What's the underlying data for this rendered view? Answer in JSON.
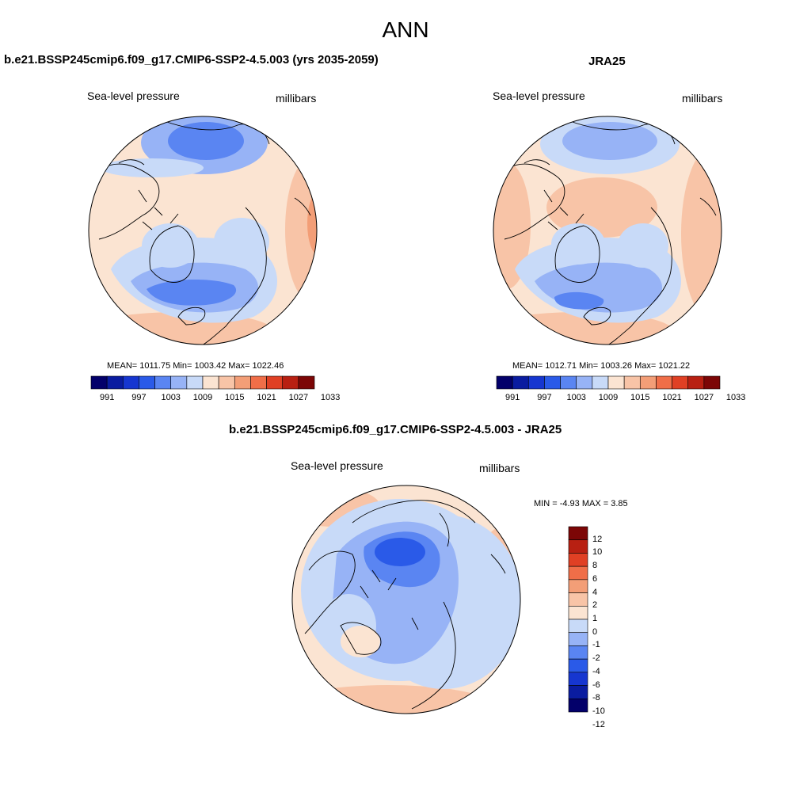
{
  "main_title": "ANN",
  "colors": {
    "abs_levels": [
      "#03006a",
      "#0a1ca0",
      "#1636d0",
      "#2a5ae8",
      "#5a85f2",
      "#97b3f6",
      "#c8daf8",
      "#fbe4d2",
      "#f8c4a7",
      "#f39e77",
      "#f06e48",
      "#e04024",
      "#b82012",
      "#7c0606"
    ],
    "diff_levels": [
      "#03006a",
      "#0a1ca0",
      "#1636d0",
      "#2a5ae8",
      "#5a85f2",
      "#97b3f6",
      "#c8daf8",
      "#fbe4d2",
      "#f8c4a7",
      "#f39e77",
      "#f06e48",
      "#e04024",
      "#b82012",
      "#7c0606"
    ],
    "ocean_outline": "#000000"
  },
  "panels": [
    {
      "id": "model",
      "title": "b.e21.BSSP245cmip6.f09_g17.CMIP6-SSP2-4.5.003 (yrs 2035-2059)",
      "variable": "Sea-level pressure",
      "units": "millibars",
      "stats": "MEAN= 1011.75  Min= 1003.42  Max= 1022.46",
      "colorbar_ticks": [
        "991",
        "997",
        "1003",
        "1009",
        "1015",
        "1021",
        "1027",
        "1033"
      ]
    },
    {
      "id": "obs",
      "title": "JRA25",
      "variable": "Sea-level pressure",
      "units": "millibars",
      "stats": "MEAN= 1012.71  Min= 1003.26  Max= 1021.22",
      "colorbar_ticks": [
        "991",
        "997",
        "1003",
        "1009",
        "1015",
        "1021",
        "1027",
        "1033"
      ]
    },
    {
      "id": "diff",
      "title": "b.e21.BSSP245cmip6.f09_g17.CMIP6-SSP2-4.5.003 - JRA25",
      "variable": "Sea-level pressure",
      "units": "millibars",
      "stats": "MIN =  -4.93 MAX =   3.85",
      "colorbar_ticks": [
        "12",
        "10",
        "8",
        "6",
        "4",
        "2",
        "1",
        "0",
        "-1",
        "-2",
        "-4",
        "-6",
        "-8",
        "-10",
        "-12"
      ]
    }
  ]
}
